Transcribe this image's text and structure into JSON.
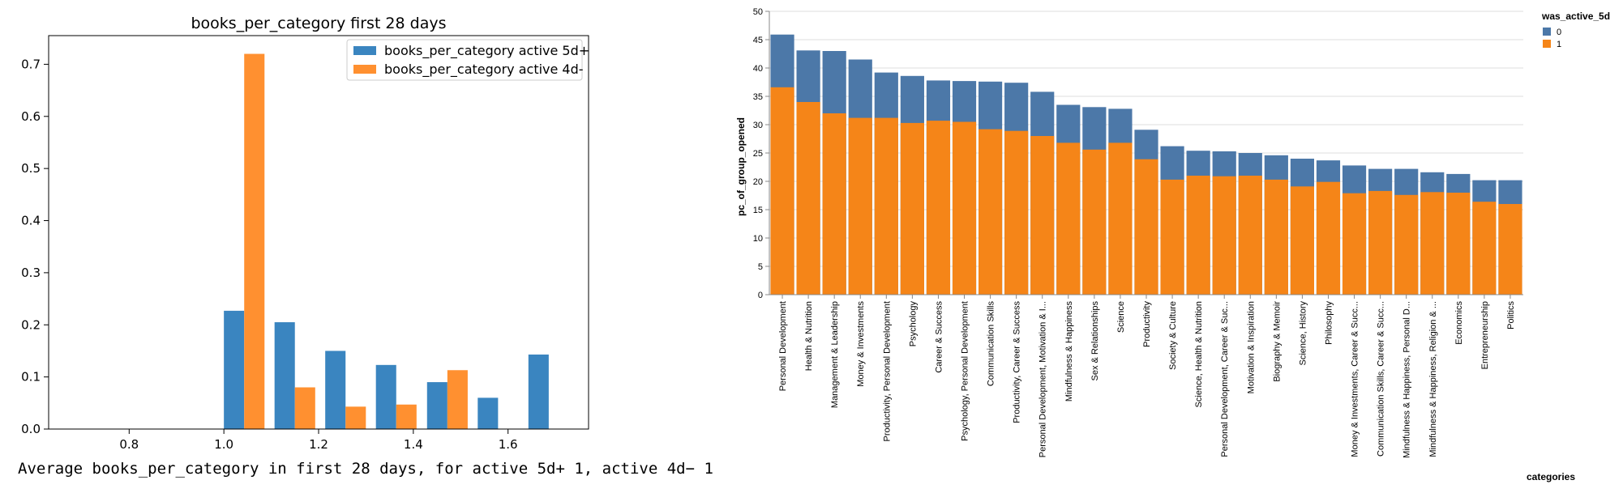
{
  "caption": "Average books_per_category in first 28 days, for active 5d+ 1, active 4d− 1",
  "chart_data": [
    {
      "type": "bar",
      "title": "books_per_category first 28 days",
      "xlabel": "",
      "ylabel": "",
      "xlim": [
        0.63,
        1.77
      ],
      "ylim": [
        0,
        0.755
      ],
      "xticks": [
        0.8,
        1.0,
        1.2,
        1.4,
        1.6
      ],
      "xtick_labels": [
        "0.8",
        "1.0",
        "1.2",
        "1.4",
        "1.6"
      ],
      "yticks": [
        0.0,
        0.1,
        0.2,
        0.3,
        0.4,
        0.5,
        0.6,
        0.7
      ],
      "ytick_labels": [
        "0.0",
        "0.1",
        "0.2",
        "0.3",
        "0.4",
        "0.5",
        "0.6",
        "0.7"
      ],
      "bin_width": 0.0429,
      "legend_position": "top-right",
      "series": [
        {
          "name": "books_per_category active 5d+",
          "color": "#3a85c0",
          "bins": [
            {
              "x": 1.0,
              "value": 0.227
            },
            {
              "x": 1.107,
              "value": 0.205
            },
            {
              "x": 1.214,
              "value": 0.15
            },
            {
              "x": 1.321,
              "value": 0.123
            },
            {
              "x": 1.429,
              "value": 0.09
            },
            {
              "x": 1.536,
              "value": 0.06
            },
            {
              "x": 1.643,
              "value": 0.143
            }
          ]
        },
        {
          "name": "books_per_category active 4d-",
          "color": "#ff9030",
          "bins": [
            {
              "x": 1.0429,
              "value": 0.72
            },
            {
              "x": 1.1499,
              "value": 0.08
            },
            {
              "x": 1.2569,
              "value": 0.043
            },
            {
              "x": 1.3639,
              "value": 0.047
            },
            {
              "x": 1.4719,
              "value": 0.113
            }
          ]
        }
      ]
    },
    {
      "type": "bar",
      "stacked": "overlay",
      "xlabel": "categories",
      "ylabel": "pc_of_group_opened",
      "ylim": [
        0,
        50
      ],
      "yticks": [
        0,
        5,
        10,
        15,
        20,
        25,
        30,
        35,
        40,
        45,
        50
      ],
      "legend_title": "was_active_5d",
      "legend_position": "top-right",
      "categories": [
        "Personal Development",
        "Health & Nutrition",
        "Management & Leadership",
        "Money & Investments",
        "Productivity, Personal Development",
        "Psychology",
        "Career & Success",
        "Psychology, Personal Development",
        "Communication Skills",
        "Productivity, Career & Success",
        "Personal Development, Motivation & I...",
        "Mindfulness & Happiness",
        "Sex & Relationships",
        "Science",
        "Productivity",
        "Society & Culture",
        "Science, Health & Nutrition",
        "Personal Development, Career & Suc...",
        "Motivation & Inspiration",
        "Biography & Memoir",
        "Science, History",
        "Philosophy",
        "Money & Investments, Career & Succ...",
        "Communication Skills, Career & Succ...",
        "Mindfulness & Happiness, Personal D...",
        "Mindfulness & Happiness, Religion & ...",
        "Economics",
        "Entrepreneurship",
        "Politics"
      ],
      "series": [
        {
          "name": "0",
          "color": "#4c78a8",
          "values": [
            45.9,
            43.1,
            43.0,
            41.5,
            39.2,
            38.6,
            37.8,
            37.7,
            37.6,
            37.4,
            35.8,
            33.5,
            33.1,
            32.8,
            29.1,
            26.2,
            25.4,
            25.3,
            25.0,
            24.6,
            24.0,
            23.7,
            22.8,
            22.2,
            22.2,
            21.6,
            21.3,
            20.2,
            20.2
          ]
        },
        {
          "name": "1",
          "color": "#f58518",
          "values": [
            36.6,
            34.0,
            32.0,
            31.2,
            31.2,
            30.3,
            30.7,
            30.5,
            29.2,
            28.9,
            28.0,
            26.8,
            25.6,
            26.8,
            23.9,
            20.3,
            21.0,
            20.9,
            21.0,
            20.3,
            19.1,
            19.9,
            17.9,
            18.3,
            17.6,
            18.1,
            18.0,
            16.4,
            16.0
          ]
        }
      ]
    }
  ]
}
